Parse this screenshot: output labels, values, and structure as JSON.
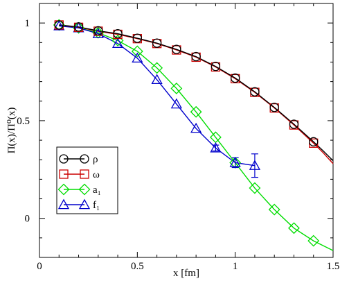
{
  "chart_data": {
    "type": "line",
    "xlabel": "x [fm]",
    "ylabel": "Π(x)/Π⁰(x)",
    "xlim": [
      0,
      1.5
    ],
    "ylim": [
      -0.2,
      1.1
    ],
    "xticks": [
      0,
      0.5,
      1,
      1.5
    ],
    "xtick_labels": [
      "0",
      "0.5",
      "1",
      "1.5"
    ],
    "yticks": [
      0,
      0.5,
      1
    ],
    "ytick_labels": [
      "0",
      "0.5",
      "1"
    ],
    "legend_position": "lower-left",
    "series": [
      {
        "name": "ρ",
        "color": "#000000",
        "marker": "circle",
        "x": [
          0.1,
          0.2,
          0.3,
          0.4,
          0.5,
          0.6,
          0.7,
          0.8,
          0.9,
          1.0,
          1.1,
          1.2,
          1.3,
          1.4
        ],
        "y": [
          0.99,
          0.98,
          0.96,
          0.945,
          0.922,
          0.897,
          0.865,
          0.828,
          0.778,
          0.718,
          0.648,
          0.568,
          0.482,
          0.392
        ],
        "curve_x": [
          0.1,
          0.2,
          0.3,
          0.4,
          0.5,
          0.6,
          0.7,
          0.8,
          0.9,
          1.0,
          1.1,
          1.2,
          1.3,
          1.4,
          1.45,
          1.5
        ],
        "curve_y": [
          0.99,
          0.98,
          0.96,
          0.945,
          0.922,
          0.897,
          0.865,
          0.828,
          0.778,
          0.718,
          0.648,
          0.568,
          0.482,
          0.392,
          0.345,
          0.295
        ]
      },
      {
        "name": "ω",
        "color": "#cc0000",
        "marker": "square",
        "x": [
          0.1,
          0.2,
          0.3,
          0.4,
          0.5,
          0.6,
          0.7,
          0.8,
          0.9,
          1.0,
          1.1,
          1.2,
          1.3,
          1.4
        ],
        "y": [
          0.99,
          0.978,
          0.958,
          0.942,
          0.92,
          0.895,
          0.862,
          0.825,
          0.775,
          0.715,
          0.645,
          0.565,
          0.478,
          0.385
        ],
        "curve_x": [
          0.1,
          0.2,
          0.3,
          0.4,
          0.5,
          0.6,
          0.7,
          0.8,
          0.9,
          1.0,
          1.1,
          1.2,
          1.3,
          1.4,
          1.45,
          1.5
        ],
        "curve_y": [
          0.99,
          0.978,
          0.958,
          0.942,
          0.92,
          0.895,
          0.862,
          0.825,
          0.775,
          0.715,
          0.645,
          0.565,
          0.478,
          0.385,
          0.335,
          0.28
        ]
      },
      {
        "name": "a₁",
        "color": "#00dd00",
        "marker": "diamond",
        "x": [
          0.1,
          0.2,
          0.3,
          0.4,
          0.5,
          0.6,
          0.7,
          0.8,
          0.9,
          1.0,
          1.1,
          1.2,
          1.3,
          1.4
        ],
        "y": [
          0.99,
          0.975,
          0.95,
          0.91,
          0.855,
          0.77,
          0.665,
          0.545,
          0.415,
          0.285,
          0.155,
          0.045,
          -0.05,
          -0.115
        ],
        "curve_x": [
          0.1,
          0.2,
          0.3,
          0.4,
          0.5,
          0.6,
          0.7,
          0.8,
          0.9,
          1.0,
          1.1,
          1.2,
          1.3,
          1.4,
          1.5
        ],
        "curve_y": [
          0.99,
          0.975,
          0.95,
          0.91,
          0.855,
          0.77,
          0.665,
          0.545,
          0.415,
          0.285,
          0.155,
          0.045,
          -0.05,
          -0.115,
          -0.165
        ]
      },
      {
        "name": "f₁",
        "color": "#0000cc",
        "marker": "triangle",
        "x": [
          0.1,
          0.2,
          0.3,
          0.4,
          0.5,
          0.6,
          0.7,
          0.8,
          0.9,
          1.0,
          1.1
        ],
        "y": [
          0.985,
          0.975,
          0.945,
          0.895,
          0.82,
          0.71,
          0.585,
          0.46,
          0.36,
          0.285,
          0.27
        ],
        "err": [
          0,
          0,
          0,
          0,
          0,
          0,
          0,
          0,
          0.015,
          0.025,
          0.06
        ],
        "curve_x": [
          0.1,
          0.2,
          0.3,
          0.4,
          0.5,
          0.6,
          0.7,
          0.8,
          0.9,
          1.0,
          1.1
        ],
        "curve_y": [
          0.985,
          0.975,
          0.945,
          0.895,
          0.82,
          0.71,
          0.585,
          0.46,
          0.36,
          0.285,
          0.27
        ]
      }
    ]
  }
}
